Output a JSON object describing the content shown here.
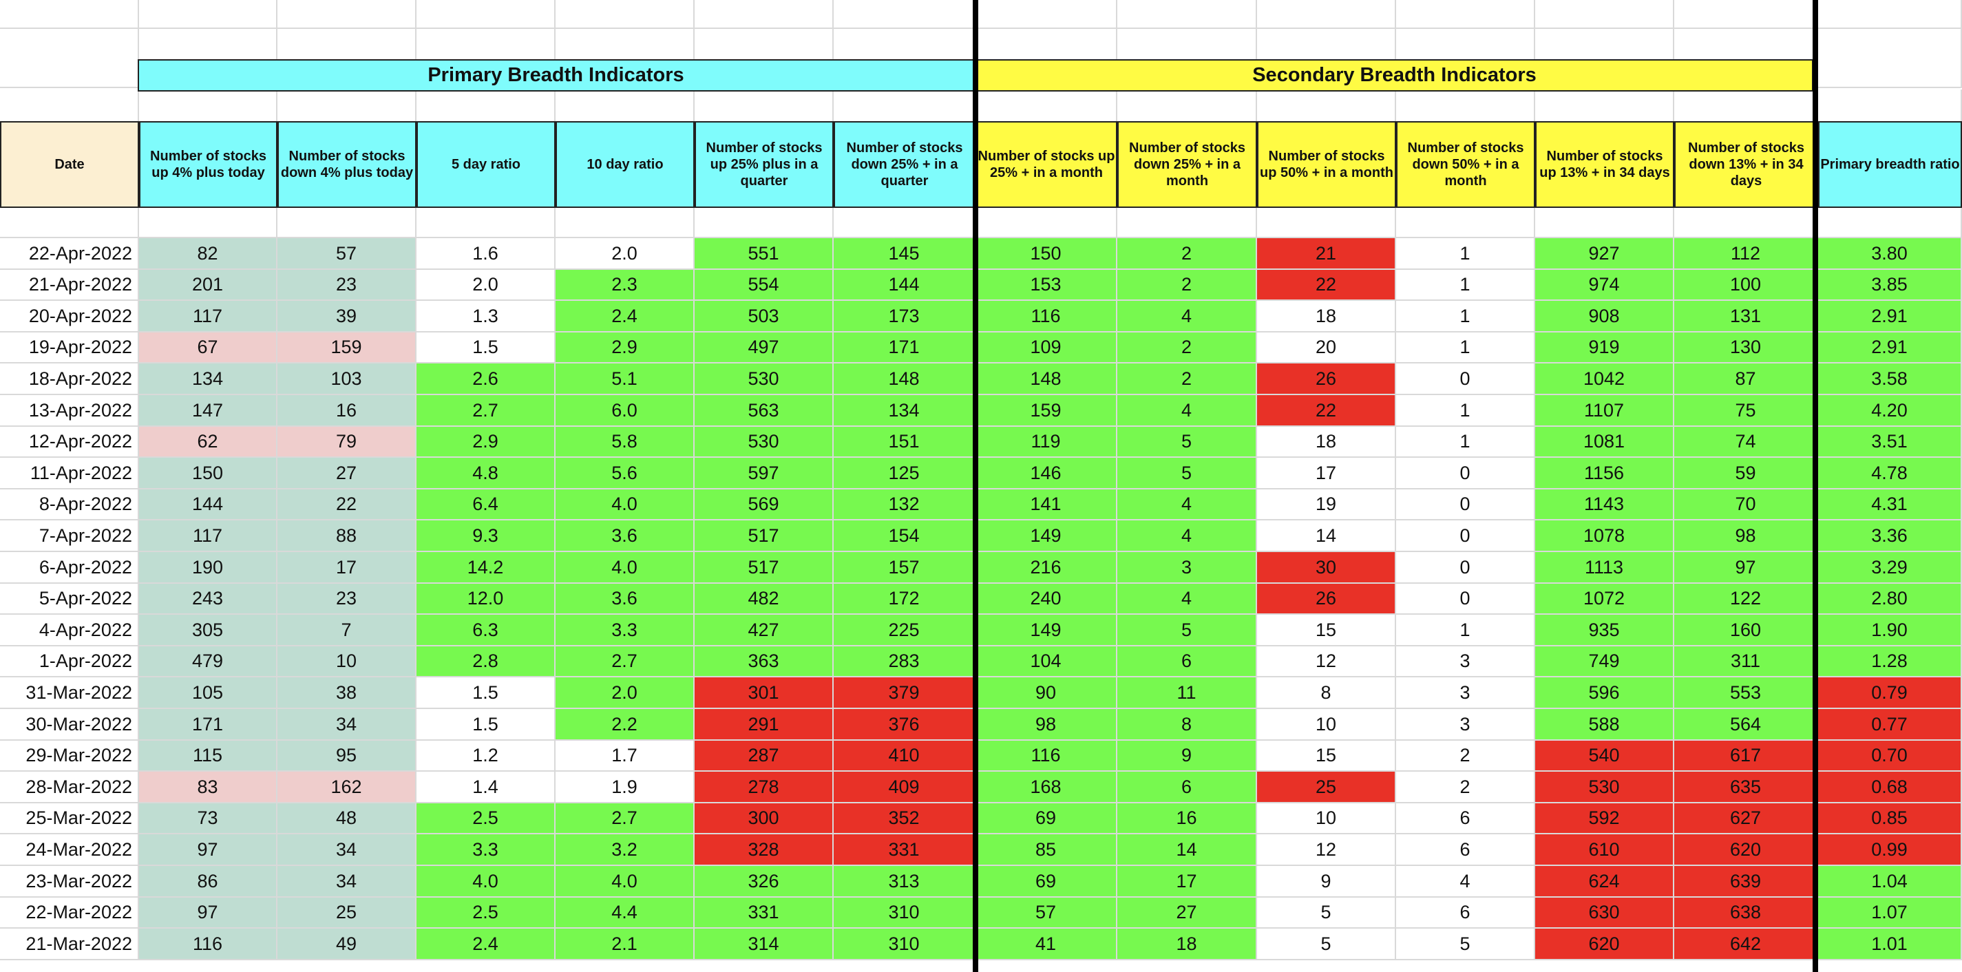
{
  "colors": {
    "teal": "#bfddd2",
    "pink": "#efcdcc",
    "green": "#77f94f",
    "red": "#e83127",
    "white": "#ffffff",
    "cyan": "#7ffcfc",
    "yellow": "#fffb44",
    "cream": "#fcefd2"
  },
  "groups": {
    "primary": "Primary Breadth Indicators",
    "secondary": "Secondary Breadth Indicators"
  },
  "columns": [
    "Date",
    "Number of stocks up 4% plus today",
    "Number of stocks down 4% plus today",
    "5 day ratio",
    "10 day ratio",
    "Number of stocks up 25% plus in a quarter",
    "Number of stocks down 25% + in a quarter",
    "Number of stocks up 25% + in a month",
    "Number of stocks down 25% + in a month",
    "Number of stocks up 50% + in a month",
    "Number of stocks down 50% + in a month",
    "Number of stocks up 13% + in 34 days",
    "Number of stocks down 13% + in 34 days",
    "Primary breadth ratio"
  ],
  "header_colors": [
    "cream",
    "cyan",
    "cyan",
    "cyan",
    "cyan",
    "cyan",
    "cyan",
    "yellow",
    "yellow",
    "yellow",
    "yellow",
    "yellow",
    "yellow",
    "cyan"
  ],
  "rows": [
    {
      "date": "22-Apr-2022",
      "values": [
        "82",
        "57",
        "1.6",
        "2.0",
        "551",
        "145",
        "150",
        "2",
        "21",
        "1",
        "927",
        "112",
        "3.80"
      ],
      "colors": [
        "teal",
        "teal",
        "white",
        "white",
        "green",
        "green",
        "green",
        "green",
        "red",
        "white",
        "green",
        "green",
        "green"
      ]
    },
    {
      "date": "21-Apr-2022",
      "values": [
        "201",
        "23",
        "2.0",
        "2.3",
        "554",
        "144",
        "153",
        "2",
        "22",
        "1",
        "974",
        "100",
        "3.85"
      ],
      "colors": [
        "teal",
        "teal",
        "white",
        "green",
        "green",
        "green",
        "green",
        "green",
        "red",
        "white",
        "green",
        "green",
        "green"
      ]
    },
    {
      "date": "20-Apr-2022",
      "values": [
        "117",
        "39",
        "1.3",
        "2.4",
        "503",
        "173",
        "116",
        "4",
        "18",
        "1",
        "908",
        "131",
        "2.91"
      ],
      "colors": [
        "teal",
        "teal",
        "white",
        "green",
        "green",
        "green",
        "green",
        "green",
        "white",
        "white",
        "green",
        "green",
        "green"
      ]
    },
    {
      "date": "19-Apr-2022",
      "values": [
        "67",
        "159",
        "1.5",
        "2.9",
        "497",
        "171",
        "109",
        "2",
        "20",
        "1",
        "919",
        "130",
        "2.91"
      ],
      "colors": [
        "pink",
        "pink",
        "white",
        "green",
        "green",
        "green",
        "green",
        "green",
        "white",
        "white",
        "green",
        "green",
        "green"
      ]
    },
    {
      "date": "18-Apr-2022",
      "values": [
        "134",
        "103",
        "2.6",
        "5.1",
        "530",
        "148",
        "148",
        "2",
        "26",
        "0",
        "1042",
        "87",
        "3.58"
      ],
      "colors": [
        "teal",
        "teal",
        "green",
        "green",
        "green",
        "green",
        "green",
        "green",
        "red",
        "white",
        "green",
        "green",
        "green"
      ]
    },
    {
      "date": "13-Apr-2022",
      "values": [
        "147",
        "16",
        "2.7",
        "6.0",
        "563",
        "134",
        "159",
        "4",
        "22",
        "1",
        "1107",
        "75",
        "4.20"
      ],
      "colors": [
        "teal",
        "teal",
        "green",
        "green",
        "green",
        "green",
        "green",
        "green",
        "red",
        "white",
        "green",
        "green",
        "green"
      ]
    },
    {
      "date": "12-Apr-2022",
      "values": [
        "62",
        "79",
        "2.9",
        "5.8",
        "530",
        "151",
        "119",
        "5",
        "18",
        "1",
        "1081",
        "74",
        "3.51"
      ],
      "colors": [
        "pink",
        "pink",
        "green",
        "green",
        "green",
        "green",
        "green",
        "green",
        "white",
        "white",
        "green",
        "green",
        "green"
      ]
    },
    {
      "date": "11-Apr-2022",
      "values": [
        "150",
        "27",
        "4.8",
        "5.6",
        "597",
        "125",
        "146",
        "5",
        "17",
        "0",
        "1156",
        "59",
        "4.78"
      ],
      "colors": [
        "teal",
        "teal",
        "green",
        "green",
        "green",
        "green",
        "green",
        "green",
        "white",
        "white",
        "green",
        "green",
        "green"
      ]
    },
    {
      "date": "8-Apr-2022",
      "values": [
        "144",
        "22",
        "6.4",
        "4.0",
        "569",
        "132",
        "141",
        "4",
        "19",
        "0",
        "1143",
        "70",
        "4.31"
      ],
      "colors": [
        "teal",
        "teal",
        "green",
        "green",
        "green",
        "green",
        "green",
        "green",
        "white",
        "white",
        "green",
        "green",
        "green"
      ]
    },
    {
      "date": "7-Apr-2022",
      "values": [
        "117",
        "88",
        "9.3",
        "3.6",
        "517",
        "154",
        "149",
        "4",
        "14",
        "0",
        "1078",
        "98",
        "3.36"
      ],
      "colors": [
        "teal",
        "teal",
        "green",
        "green",
        "green",
        "green",
        "green",
        "green",
        "white",
        "white",
        "green",
        "green",
        "green"
      ]
    },
    {
      "date": "6-Apr-2022",
      "values": [
        "190",
        "17",
        "14.2",
        "4.0",
        "517",
        "157",
        "216",
        "3",
        "30",
        "0",
        "1113",
        "97",
        "3.29"
      ],
      "colors": [
        "teal",
        "teal",
        "green",
        "green",
        "green",
        "green",
        "green",
        "green",
        "red",
        "white",
        "green",
        "green",
        "green"
      ]
    },
    {
      "date": "5-Apr-2022",
      "values": [
        "243",
        "23",
        "12.0",
        "3.6",
        "482",
        "172",
        "240",
        "4",
        "26",
        "0",
        "1072",
        "122",
        "2.80"
      ],
      "colors": [
        "teal",
        "teal",
        "green",
        "green",
        "green",
        "green",
        "green",
        "green",
        "red",
        "white",
        "green",
        "green",
        "green"
      ]
    },
    {
      "date": "4-Apr-2022",
      "values": [
        "305",
        "7",
        "6.3",
        "3.3",
        "427",
        "225",
        "149",
        "5",
        "15",
        "1",
        "935",
        "160",
        "1.90"
      ],
      "colors": [
        "teal",
        "teal",
        "green",
        "green",
        "green",
        "green",
        "green",
        "green",
        "white",
        "white",
        "green",
        "green",
        "green"
      ]
    },
    {
      "date": "1-Apr-2022",
      "values": [
        "479",
        "10",
        "2.8",
        "2.7",
        "363",
        "283",
        "104",
        "6",
        "12",
        "3",
        "749",
        "311",
        "1.28"
      ],
      "colors": [
        "teal",
        "teal",
        "green",
        "green",
        "green",
        "green",
        "green",
        "green",
        "white",
        "white",
        "green",
        "green",
        "green"
      ]
    },
    {
      "date": "31-Mar-2022",
      "values": [
        "105",
        "38",
        "1.5",
        "2.0",
        "301",
        "379",
        "90",
        "11",
        "8",
        "3",
        "596",
        "553",
        "0.79"
      ],
      "colors": [
        "teal",
        "teal",
        "white",
        "green",
        "red",
        "red",
        "green",
        "green",
        "white",
        "white",
        "green",
        "green",
        "red"
      ]
    },
    {
      "date": "30-Mar-2022",
      "values": [
        "171",
        "34",
        "1.5",
        "2.2",
        "291",
        "376",
        "98",
        "8",
        "10",
        "3",
        "588",
        "564",
        "0.77"
      ],
      "colors": [
        "teal",
        "teal",
        "white",
        "green",
        "red",
        "red",
        "green",
        "green",
        "white",
        "white",
        "green",
        "green",
        "red"
      ]
    },
    {
      "date": "29-Mar-2022",
      "values": [
        "115",
        "95",
        "1.2",
        "1.7",
        "287",
        "410",
        "116",
        "9",
        "15",
        "2",
        "540",
        "617",
        "0.70"
      ],
      "colors": [
        "teal",
        "teal",
        "white",
        "white",
        "red",
        "red",
        "green",
        "green",
        "white",
        "white",
        "red",
        "red",
        "red"
      ]
    },
    {
      "date": "28-Mar-2022",
      "values": [
        "83",
        "162",
        "1.4",
        "1.9",
        "278",
        "409",
        "168",
        "6",
        "25",
        "2",
        "530",
        "635",
        "0.68"
      ],
      "colors": [
        "pink",
        "pink",
        "white",
        "white",
        "red",
        "red",
        "green",
        "green",
        "red",
        "white",
        "red",
        "red",
        "red"
      ]
    },
    {
      "date": "25-Mar-2022",
      "values": [
        "73",
        "48",
        "2.5",
        "2.7",
        "300",
        "352",
        "69",
        "16",
        "10",
        "6",
        "592",
        "627",
        "0.85"
      ],
      "colors": [
        "teal",
        "teal",
        "green",
        "green",
        "red",
        "red",
        "green",
        "green",
        "white",
        "white",
        "red",
        "red",
        "red"
      ]
    },
    {
      "date": "24-Mar-2022",
      "values": [
        "97",
        "34",
        "3.3",
        "3.2",
        "328",
        "331",
        "85",
        "14",
        "12",
        "6",
        "610",
        "620",
        "0.99"
      ],
      "colors": [
        "teal",
        "teal",
        "green",
        "green",
        "red",
        "red",
        "green",
        "green",
        "white",
        "white",
        "red",
        "red",
        "red"
      ]
    },
    {
      "date": "23-Mar-2022",
      "values": [
        "86",
        "34",
        "4.0",
        "4.0",
        "326",
        "313",
        "69",
        "17",
        "9",
        "4",
        "624",
        "639",
        "1.04"
      ],
      "colors": [
        "teal",
        "teal",
        "green",
        "green",
        "green",
        "green",
        "green",
        "green",
        "white",
        "white",
        "red",
        "red",
        "green"
      ]
    },
    {
      "date": "22-Mar-2022",
      "values": [
        "97",
        "25",
        "2.5",
        "4.4",
        "331",
        "310",
        "57",
        "27",
        "5",
        "6",
        "630",
        "638",
        "1.07"
      ],
      "colors": [
        "teal",
        "teal",
        "green",
        "green",
        "green",
        "green",
        "green",
        "green",
        "white",
        "white",
        "red",
        "red",
        "green"
      ]
    },
    {
      "date": "21-Mar-2022",
      "values": [
        "116",
        "49",
        "2.4",
        "2.1",
        "314",
        "310",
        "41",
        "18",
        "5",
        "5",
        "620",
        "642",
        "1.01"
      ],
      "colors": [
        "teal",
        "teal",
        "green",
        "green",
        "green",
        "green",
        "green",
        "green",
        "white",
        "white",
        "red",
        "red",
        "green"
      ]
    }
  ]
}
